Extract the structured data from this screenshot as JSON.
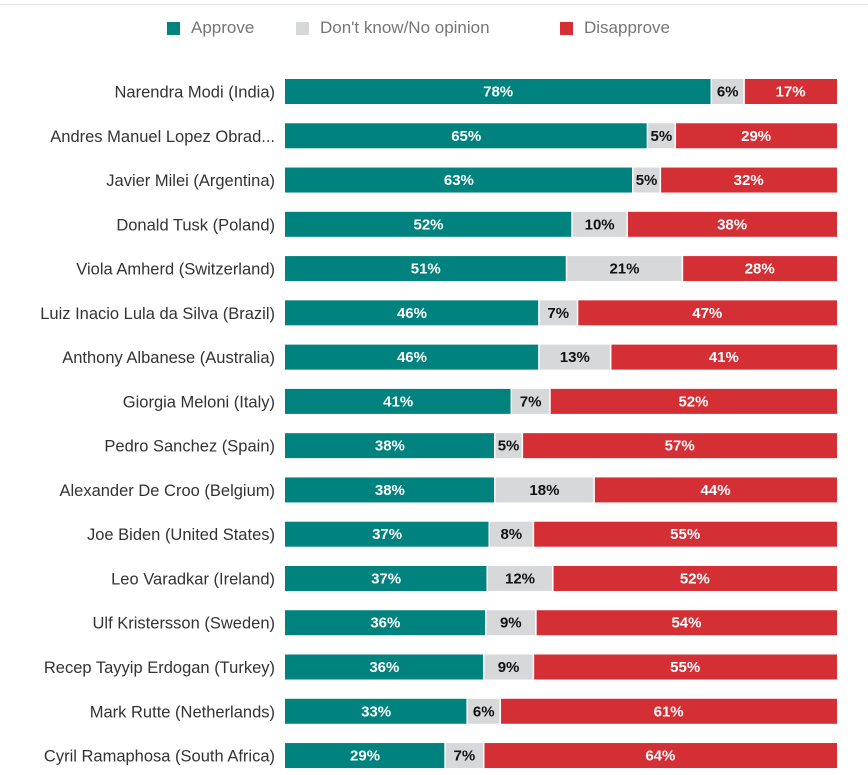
{
  "chart_data": {
    "type": "bar",
    "orientation": "horizontal",
    "stacked": true,
    "title": "",
    "xlabel": "",
    "ylabel": "",
    "xlim": [
      0,
      100
    ],
    "grid": false,
    "legend_position": "top-center",
    "value_suffix": "%",
    "categories": [
      "Narendra Modi (India)",
      "Andres Manuel Lopez Obrad...",
      "Javier Milei (Argentina)",
      "Donald Tusk (Poland)",
      "Viola Amherd (Switzerland)",
      "Luiz Inacio Lula da Silva (Brazil)",
      "Anthony Albanese (Australia)",
      "Giorgia Meloni (Italy)",
      "Pedro Sanchez (Spain)",
      "Alexander De Croo (Belgium)",
      "Joe Biden (United States)",
      "Leo Varadkar (Ireland)",
      "Ulf Kristersson (Sweden)",
      "Recep Tayyip Erdogan (Turkey)",
      "Mark Rutte (Netherlands)",
      "Cyril Ramaphosa (South Africa)"
    ],
    "series": [
      {
        "name": "Approve",
        "color": "#00827e",
        "label_color": "#ffffff",
        "values": [
          78,
          65,
          63,
          52,
          51,
          46,
          46,
          41,
          38,
          38,
          37,
          37,
          36,
          36,
          33,
          29
        ]
      },
      {
        "name": "Don't know/No opinion",
        "color": "#d6d8da",
        "label_color": "#111111",
        "values": [
          6,
          5,
          5,
          10,
          21,
          7,
          13,
          7,
          5,
          18,
          8,
          12,
          9,
          9,
          6,
          7
        ]
      },
      {
        "name": "Disapprove",
        "color": "#d52f36",
        "label_color": "#ffffff",
        "values": [
          17,
          29,
          32,
          38,
          28,
          47,
          41,
          52,
          57,
          44,
          55,
          52,
          54,
          55,
          61,
          64
        ]
      }
    ]
  }
}
